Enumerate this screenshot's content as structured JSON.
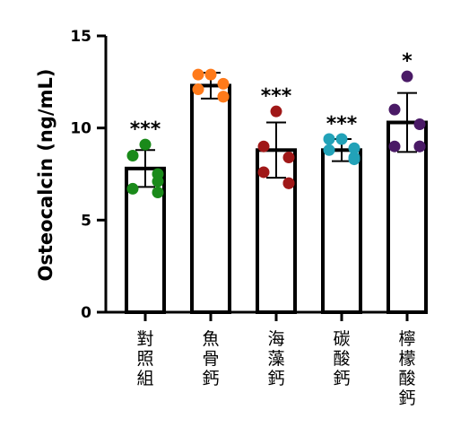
{
  "chart_data": {
    "type": "bar",
    "ylabel": "Osteocalcin (ng/mL)",
    "ylim": [
      0,
      15
    ],
    "yticks": [
      0,
      5,
      10,
      15
    ],
    "categories": [
      "對照組",
      "魚骨鈣",
      "海藻鈣",
      "碳酸鈣",
      "檸檬酸鈣"
    ],
    "values": [
      7.8,
      12.3,
      8.8,
      8.8,
      10.3
    ],
    "error": [
      1.0,
      0.7,
      1.5,
      0.6,
      1.6
    ],
    "significance": [
      "***",
      "",
      "***",
      "***",
      "*"
    ],
    "point_colors": [
      "#1a8a1a",
      "#ff7a1a",
      "#a01818",
      "#22a2b8",
      "#4a1a66"
    ],
    "points": [
      [
        9.1,
        8.5,
        7.5,
        6.7,
        7.1,
        6.5
      ],
      [
        12.9,
        12.9,
        12.4,
        12.1,
        11.7,
        11.7
      ],
      [
        10.9,
        9.0,
        8.4,
        7.6,
        7.0,
        7.0
      ],
      [
        9.4,
        9.4,
        8.9,
        8.8,
        8.4,
        8.3
      ],
      [
        12.8,
        11.0,
        10.2,
        9.0,
        9.0,
        9.0
      ]
    ]
  }
}
